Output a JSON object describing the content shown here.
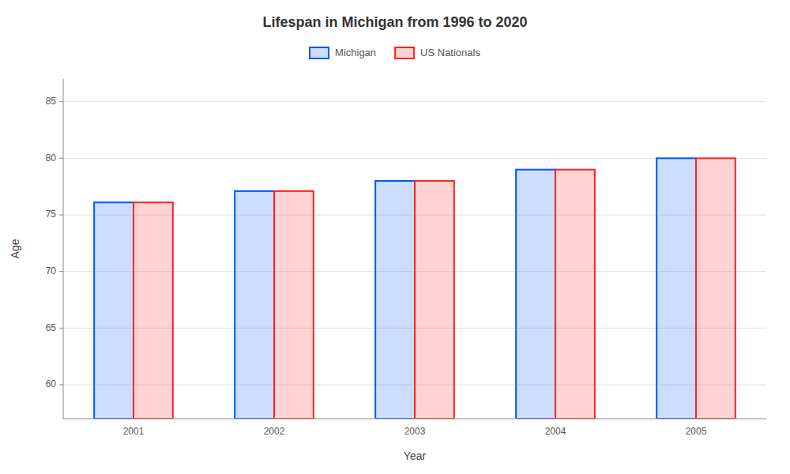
{
  "chart_data": {
    "type": "bar",
    "title": "Lifespan in Michigan from 1996 to 2020",
    "xlabel": "Year",
    "ylabel": "Age",
    "categories": [
      "2001",
      "2002",
      "2003",
      "2004",
      "2005"
    ],
    "series": [
      {
        "name": "Michigan",
        "color": "#0055ff",
        "values": [
          76.1,
          77.1,
          78.0,
          79.0,
          80.0
        ]
      },
      {
        "name": "US Nationals",
        "color": "#ff2222",
        "values": [
          76.1,
          77.1,
          78.0,
          79.0,
          80.0
        ]
      }
    ],
    "ylim": [
      57,
      87
    ],
    "yticks": [
      60,
      65,
      70,
      75,
      80,
      85
    ],
    "grid": true,
    "legend": "top"
  }
}
